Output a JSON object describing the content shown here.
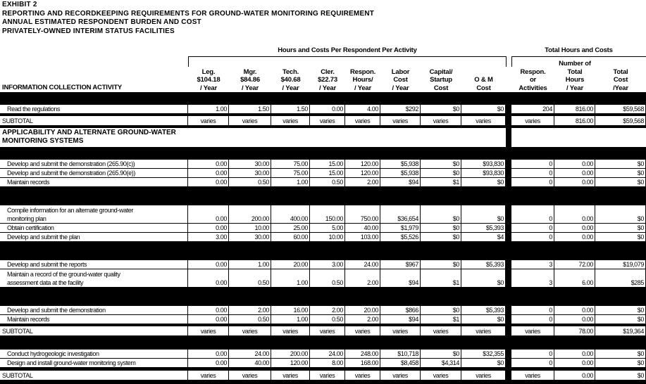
{
  "title_lines": [
    "EXHIBIT 2",
    "REPORTING AND RECORDKEEPING REQUIREMENTS FOR GROUND-WATER MONITORING REQUIREMENT",
    "ANNUAL ESTIMATED RESPONDENT BURDEN AND COST",
    "PRIVATELY-OWNED INTERIM STATUS FACILITIES"
  ],
  "group_headers": {
    "per_respondent": "Hours and Costs Per Respondent Per Activity",
    "totals": "Total Hours and Costs"
  },
  "columns": {
    "activity": "INFORMATION COLLECTION ACTIVITY",
    "per": [
      "Leg.\n$104.18\n/ Year",
      "Mgr.\n$84.86\n/ Year",
      "Tech.\n$40.68\n/ Year",
      "Cler.\n$22.73\n/ Year",
      "Respon.\nHours/\n/ Year",
      "Labor\nCost\n/ Year",
      "Capital/\nStartup\nCost",
      "O & M\nCost"
    ],
    "tot": [
      "Respon.\nor\nActivities",
      "Number of\nTotal\nHours\n/ Year",
      "Total\nCost\n/Year"
    ]
  },
  "rows": [
    {
      "type": "band"
    },
    {
      "type": "data",
      "activity": "Read the regulations",
      "v": [
        "1.00",
        "1.50",
        "1.50",
        "0.00",
        "4.00",
        "$292",
        "$0",
        "$0"
      ],
      "t": [
        "204",
        "816.00",
        "$59,568"
      ]
    },
    {
      "type": "gap"
    },
    {
      "type": "subtotal",
      "activity": "SUBTOTAL",
      "v": [
        "varies",
        "varies",
        "varies",
        "varies",
        "varies",
        "varies",
        "varies",
        "varies"
      ],
      "t": [
        "varies",
        "816.00",
        "$59,568"
      ]
    },
    {
      "type": "gap"
    },
    {
      "type": "section",
      "activity": "APPLICABILITY AND ALTERNATE GROUND-WATER\nMONITORING SYSTEMS"
    },
    {
      "type": "band"
    },
    {
      "type": "data",
      "activity": "Develop and submit the demonstration (265.90(c))",
      "v": [
        "0.00",
        "30.00",
        "75.00",
        "15.00",
        "120.00",
        "$5,938",
        "$0",
        "$93,830"
      ],
      "t": [
        "0",
        "0.00",
        "$0"
      ]
    },
    {
      "type": "data",
      "activity": "Develop and submit the demonstration (265.90(e))",
      "v": [
        "0.00",
        "30.00",
        "75.00",
        "15.00",
        "120.00",
        "$5,938",
        "$0",
        "$93,830"
      ],
      "t": [
        "0",
        "0.00",
        "$0"
      ]
    },
    {
      "type": "data",
      "activity": "Maintain records",
      "v": [
        "0.00",
        "0.50",
        "1.00",
        "0.50",
        "2.00",
        "$94",
        "$1",
        "$0"
      ],
      "t": [
        "0",
        "0.00",
        "$0"
      ]
    },
    {
      "type": "bandL"
    },
    {
      "type": "data2",
      "activity": "Compile information for an alternate ground-water\nmonitoring plan",
      "v": [
        "0.00",
        "200.00",
        "400.00",
        "150.00",
        "750.00",
        "$36,654",
        "$0",
        "$0"
      ],
      "t": [
        "0",
        "0.00",
        "$0"
      ]
    },
    {
      "type": "data",
      "activity": "Obtain certification",
      "v": [
        "0.00",
        "10.00",
        "25.00",
        "5.00",
        "40.00",
        "$1,979",
        "$0",
        "$5,393"
      ],
      "t": [
        "0",
        "0.00",
        "$0"
      ]
    },
    {
      "type": "data",
      "activity": "Develop and submit the plan",
      "v": [
        "3.00",
        "30.00",
        "60.00",
        "10.00",
        "103.00",
        "$5,526",
        "$0",
        "$4"
      ],
      "t": [
        "0",
        "0.00",
        "$0"
      ]
    },
    {
      "type": "bandL"
    },
    {
      "type": "data",
      "activity": "Develop and submit the reports",
      "v": [
        "0.00",
        "1.00",
        "20.00",
        "3.00",
        "24.00",
        "$967",
        "$0",
        "$5,393"
      ],
      "t": [
        "3",
        "72.00",
        "$19,079"
      ]
    },
    {
      "type": "data2",
      "activity": "Maintain a record of the ground-water quality\nassessment data at the facility",
      "v": [
        "0.00",
        "0.50",
        "1.00",
        "0.50",
        "2.00",
        "$94",
        "$1",
        "$0"
      ],
      "t": [
        "3",
        "6.00",
        "$285"
      ]
    },
    {
      "type": "bandL"
    },
    {
      "type": "data",
      "activity": "Develop and submit the demonstration",
      "v": [
        "0.00",
        "2.00",
        "16.00",
        "2.00",
        "20.00",
        "$866",
        "$0",
        "$5,393"
      ],
      "t": [
        "0",
        "0.00",
        "$0"
      ]
    },
    {
      "type": "data",
      "activity": "Maintain records",
      "v": [
        "0.00",
        "0.50",
        "1.00",
        "0.50",
        "2.00",
        "$94",
        "$1",
        "$0"
      ],
      "t": [
        "0",
        "0.00",
        "$0"
      ]
    },
    {
      "type": "gap"
    },
    {
      "type": "subtotal",
      "activity": "SUBTOTAL",
      "v": [
        "varies",
        "varies",
        "varies",
        "varies",
        "varies",
        "varies",
        "varies",
        "varies"
      ],
      "t": [
        "varies",
        "78.00",
        "$19,364"
      ]
    },
    {
      "type": "bandM"
    },
    {
      "type": "data",
      "activity": "Conduct hydrogeologic investigation",
      "v": [
        "0.00",
        "24.00",
        "200.00",
        "24.00",
        "248.00",
        "$10,718",
        "$0",
        "$32,355"
      ],
      "t": [
        "0",
        "0.00",
        "$0"
      ]
    },
    {
      "type": "data",
      "activity": "Design and install ground-water monitoring system",
      "v": [
        "0.00",
        "40.00",
        "120.00",
        "8.00",
        "168.00",
        "$8,458",
        "$4,314",
        "$0"
      ],
      "t": [
        "0",
        "0.00",
        "$0"
      ]
    },
    {
      "type": "gapS"
    },
    {
      "type": "subtotal",
      "activity": "SUBTOTAL",
      "v": [
        "varies",
        "varies",
        "varies",
        "varies",
        "varies",
        "varies",
        "varies",
        "varies"
      ],
      "t": [
        "varies",
        "0.00",
        "$0"
      ]
    }
  ]
}
